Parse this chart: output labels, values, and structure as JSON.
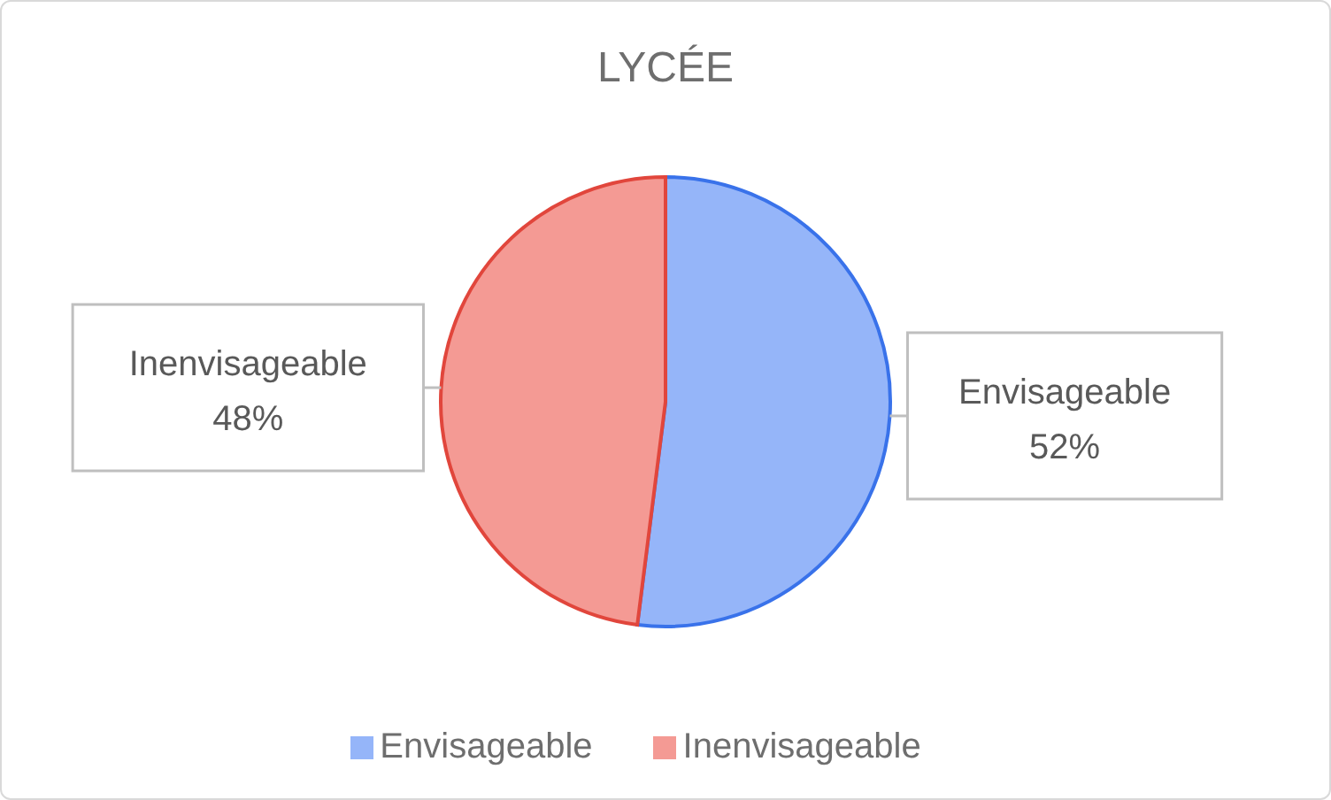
{
  "chart_data": {
    "type": "pie",
    "title": "LYCÉE",
    "categories": [
      "Envisageable",
      "Inenvisageable"
    ],
    "values": [
      52,
      48
    ],
    "value_labels": [
      "52%",
      "48%"
    ],
    "colors": [
      "#95b5f9",
      "#f49a94"
    ],
    "legend": "bottom"
  }
}
